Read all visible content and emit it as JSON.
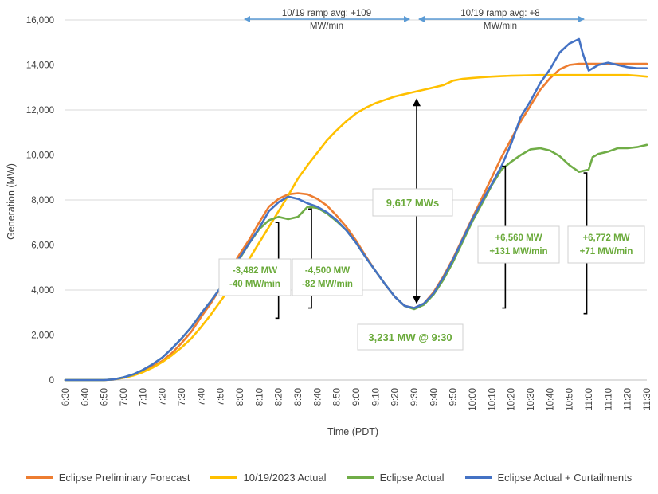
{
  "chart_data": {
    "type": "line",
    "title": "",
    "xlabel": "Time (PDT)",
    "ylabel": "Generation (MW)",
    "ylim": [
      0,
      16000
    ],
    "yticks": [
      0,
      2000,
      4000,
      6000,
      8000,
      10000,
      12000,
      14000,
      16000
    ],
    "ytick_labels": [
      "0",
      "2,000",
      "4,000",
      "6,000",
      "8,000",
      "10,000",
      "12,000",
      "14,000",
      "16,000"
    ],
    "x_minutes_start": 390,
    "x_minutes_end": 690,
    "xtick_labels": [
      "6:30",
      "6:40",
      "6:50",
      "7:00",
      "7:10",
      "7:20",
      "7:30",
      "7:40",
      "7:50",
      "8:00",
      "8:10",
      "8:20",
      "8:30",
      "8:40",
      "8:50",
      "9:00",
      "9:10",
      "9:20",
      "9:30",
      "9:40",
      "9:50",
      "10:00",
      "10:10",
      "10:20",
      "10:30",
      "10:40",
      "10:50",
      "11:00",
      "11:10",
      "11:20",
      "11:30"
    ],
    "series": [
      {
        "name": "Eclipse Preliminary Forecast",
        "color": "#ed7d31",
        "points": [
          [
            390,
            0
          ],
          [
            400,
            0
          ],
          [
            410,
            0
          ],
          [
            415,
            20
          ],
          [
            420,
            100
          ],
          [
            425,
            220
          ],
          [
            430,
            400
          ],
          [
            435,
            600
          ],
          [
            440,
            850
          ],
          [
            445,
            1200
          ],
          [
            450,
            1650
          ],
          [
            455,
            2150
          ],
          [
            460,
            2800
          ],
          [
            465,
            3400
          ],
          [
            470,
            4100
          ],
          [
            475,
            4900
          ],
          [
            480,
            5600
          ],
          [
            485,
            6250
          ],
          [
            490,
            7000
          ],
          [
            495,
            7700
          ],
          [
            500,
            8050
          ],
          [
            505,
            8250
          ],
          [
            510,
            8300
          ],
          [
            515,
            8250
          ],
          [
            520,
            8050
          ],
          [
            525,
            7750
          ],
          [
            530,
            7300
          ],
          [
            535,
            6800
          ],
          [
            540,
            6200
          ],
          [
            545,
            5500
          ],
          [
            550,
            4850
          ],
          [
            555,
            4250
          ],
          [
            560,
            3700
          ],
          [
            565,
            3300
          ],
          [
            570,
            3200
          ],
          [
            575,
            3400
          ],
          [
            580,
            3900
          ],
          [
            585,
            4600
          ],
          [
            590,
            5400
          ],
          [
            595,
            6300
          ],
          [
            600,
            7200
          ],
          [
            605,
            8100
          ],
          [
            610,
            9000
          ],
          [
            615,
            9900
          ],
          [
            620,
            10700
          ],
          [
            625,
            11500
          ],
          [
            630,
            12200
          ],
          [
            635,
            12900
          ],
          [
            640,
            13400
          ],
          [
            645,
            13800
          ],
          [
            650,
            14000
          ],
          [
            655,
            14050
          ],
          [
            660,
            14050
          ],
          [
            665,
            14050
          ],
          [
            670,
            14050
          ],
          [
            675,
            14050
          ],
          [
            680,
            14050
          ],
          [
            685,
            14050
          ],
          [
            690,
            14050
          ]
        ]
      },
      {
        "name": "10/19/2023 Actual",
        "color": "#ffc000",
        "points": [
          [
            390,
            0
          ],
          [
            400,
            0
          ],
          [
            410,
            0
          ],
          [
            415,
            30
          ],
          [
            420,
            100
          ],
          [
            425,
            200
          ],
          [
            430,
            350
          ],
          [
            435,
            550
          ],
          [
            440,
            800
          ],
          [
            445,
            1100
          ],
          [
            450,
            1450
          ],
          [
            455,
            1850
          ],
          [
            460,
            2350
          ],
          [
            465,
            2900
          ],
          [
            470,
            3500
          ],
          [
            475,
            4100
          ],
          [
            480,
            4700
          ],
          [
            485,
            5400
          ],
          [
            490,
            6100
          ],
          [
            495,
            6800
          ],
          [
            500,
            7500
          ],
          [
            505,
            8200
          ],
          [
            510,
            8950
          ],
          [
            515,
            9550
          ],
          [
            520,
            10100
          ],
          [
            525,
            10650
          ],
          [
            530,
            11100
          ],
          [
            535,
            11500
          ],
          [
            540,
            11850
          ],
          [
            545,
            12100
          ],
          [
            550,
            12300
          ],
          [
            555,
            12450
          ],
          [
            560,
            12600
          ],
          [
            565,
            12700
          ],
          [
            570,
            12800
          ],
          [
            575,
            12900
          ],
          [
            580,
            13000
          ],
          [
            585,
            13100
          ],
          [
            590,
            13300
          ],
          [
            595,
            13380
          ],
          [
            600,
            13420
          ],
          [
            605,
            13450
          ],
          [
            610,
            13480
          ],
          [
            615,
            13500
          ],
          [
            620,
            13520
          ],
          [
            625,
            13530
          ],
          [
            630,
            13540
          ],
          [
            635,
            13550
          ],
          [
            640,
            13550
          ],
          [
            645,
            13550
          ],
          [
            650,
            13550
          ],
          [
            655,
            13550
          ],
          [
            660,
            13550
          ],
          [
            665,
            13550
          ],
          [
            670,
            13550
          ],
          [
            675,
            13550
          ],
          [
            680,
            13550
          ],
          [
            685,
            13520
          ],
          [
            690,
            13480
          ]
        ]
      },
      {
        "name": "Eclipse Actual",
        "color": "#70ad47",
        "points": [
          [
            390,
            0
          ],
          [
            400,
            0
          ],
          [
            410,
            0
          ],
          [
            415,
            30
          ],
          [
            420,
            120
          ],
          [
            425,
            250
          ],
          [
            430,
            450
          ],
          [
            435,
            700
          ],
          [
            440,
            1000
          ],
          [
            445,
            1400
          ],
          [
            450,
            1850
          ],
          [
            455,
            2350
          ],
          [
            460,
            2950
          ],
          [
            465,
            3500
          ],
          [
            470,
            4100
          ],
          [
            475,
            4750
          ],
          [
            480,
            5400
          ],
          [
            485,
            6100
          ],
          [
            490,
            6700
          ],
          [
            495,
            7100
          ],
          [
            500,
            7250
          ],
          [
            505,
            7150
          ],
          [
            510,
            7250
          ],
          [
            515,
            7700
          ],
          [
            520,
            7650
          ],
          [
            525,
            7400
          ],
          [
            530,
            7050
          ],
          [
            535,
            6650
          ],
          [
            540,
            6100
          ],
          [
            545,
            5450
          ],
          [
            550,
            4850
          ],
          [
            555,
            4250
          ],
          [
            560,
            3700
          ],
          [
            565,
            3300
          ],
          [
            570,
            3150
          ],
          [
            575,
            3350
          ],
          [
            580,
            3800
          ],
          [
            585,
            4450
          ],
          [
            590,
            5250
          ],
          [
            595,
            6150
          ],
          [
            600,
            7050
          ],
          [
            605,
            7850
          ],
          [
            610,
            8650
          ],
          [
            615,
            9350
          ],
          [
            620,
            9700
          ],
          [
            625,
            10000
          ],
          [
            630,
            10250
          ],
          [
            635,
            10300
          ],
          [
            640,
            10200
          ],
          [
            645,
            9950
          ],
          [
            650,
            9550
          ],
          [
            655,
            9250
          ],
          [
            660,
            9350
          ],
          [
            662,
            9900
          ],
          [
            665,
            10050
          ],
          [
            670,
            10150
          ],
          [
            675,
            10300
          ],
          [
            680,
            10300
          ],
          [
            685,
            10350
          ],
          [
            690,
            10450
          ]
        ]
      },
      {
        "name": "Eclipse Actual + Curtailments",
        "color": "#4472c4",
        "points": [
          [
            390,
            0
          ],
          [
            400,
            0
          ],
          [
            410,
            0
          ],
          [
            415,
            30
          ],
          [
            420,
            120
          ],
          [
            425,
            250
          ],
          [
            430,
            450
          ],
          [
            435,
            700
          ],
          [
            440,
            1000
          ],
          [
            445,
            1400
          ],
          [
            450,
            1850
          ],
          [
            455,
            2350
          ],
          [
            460,
            2950
          ],
          [
            465,
            3500
          ],
          [
            470,
            4100
          ],
          [
            475,
            4750
          ],
          [
            480,
            5450
          ],
          [
            485,
            6100
          ],
          [
            490,
            6750
          ],
          [
            495,
            7500
          ],
          [
            500,
            7900
          ],
          [
            505,
            8150
          ],
          [
            510,
            8050
          ],
          [
            515,
            7850
          ],
          [
            520,
            7700
          ],
          [
            525,
            7450
          ],
          [
            530,
            7100
          ],
          [
            535,
            6650
          ],
          [
            540,
            6100
          ],
          [
            545,
            5450
          ],
          [
            550,
            4850
          ],
          [
            555,
            4250
          ],
          [
            560,
            3700
          ],
          [
            565,
            3300
          ],
          [
            570,
            3200
          ],
          [
            575,
            3400
          ],
          [
            580,
            3850
          ],
          [
            585,
            4550
          ],
          [
            590,
            5350
          ],
          [
            595,
            6250
          ],
          [
            600,
            7150
          ],
          [
            605,
            7950
          ],
          [
            610,
            8700
          ],
          [
            615,
            9500
          ],
          [
            620,
            10500
          ],
          [
            625,
            11700
          ],
          [
            630,
            12400
          ],
          [
            635,
            13200
          ],
          [
            640,
            13800
          ],
          [
            645,
            14550
          ],
          [
            650,
            14950
          ],
          [
            655,
            15150
          ],
          [
            657,
            14500
          ],
          [
            660,
            13750
          ],
          [
            665,
            14000
          ],
          [
            670,
            14100
          ],
          [
            675,
            14000
          ],
          [
            680,
            13900
          ],
          [
            685,
            13850
          ],
          [
            690,
            13850
          ]
        ]
      }
    ],
    "ramp_annotations": [
      {
        "line1": "10/19 ramp avg: +109",
        "line2": "MW/min",
        "from": 480,
        "to": 570
      },
      {
        "line1": "10/19 ramp avg: +8",
        "line2": "MW/min",
        "from": 570,
        "to": 660
      }
    ],
    "callouts": [
      {
        "line1": "-3,482 MW",
        "line2": "-40 MW/min"
      },
      {
        "line1": "-4,500 MW",
        "line2": "-82 MW/min"
      },
      {
        "line1": "9,617 MWs",
        "line2": ""
      },
      {
        "line1": "3,231 MW @ 9:30",
        "line2": ""
      },
      {
        "line1": "+6,560 MW",
        "line2": "+131 MW/min"
      },
      {
        "line1": "+6,772 MW",
        "line2": "+71 MW/min"
      }
    ],
    "legend_position": "bottom"
  }
}
